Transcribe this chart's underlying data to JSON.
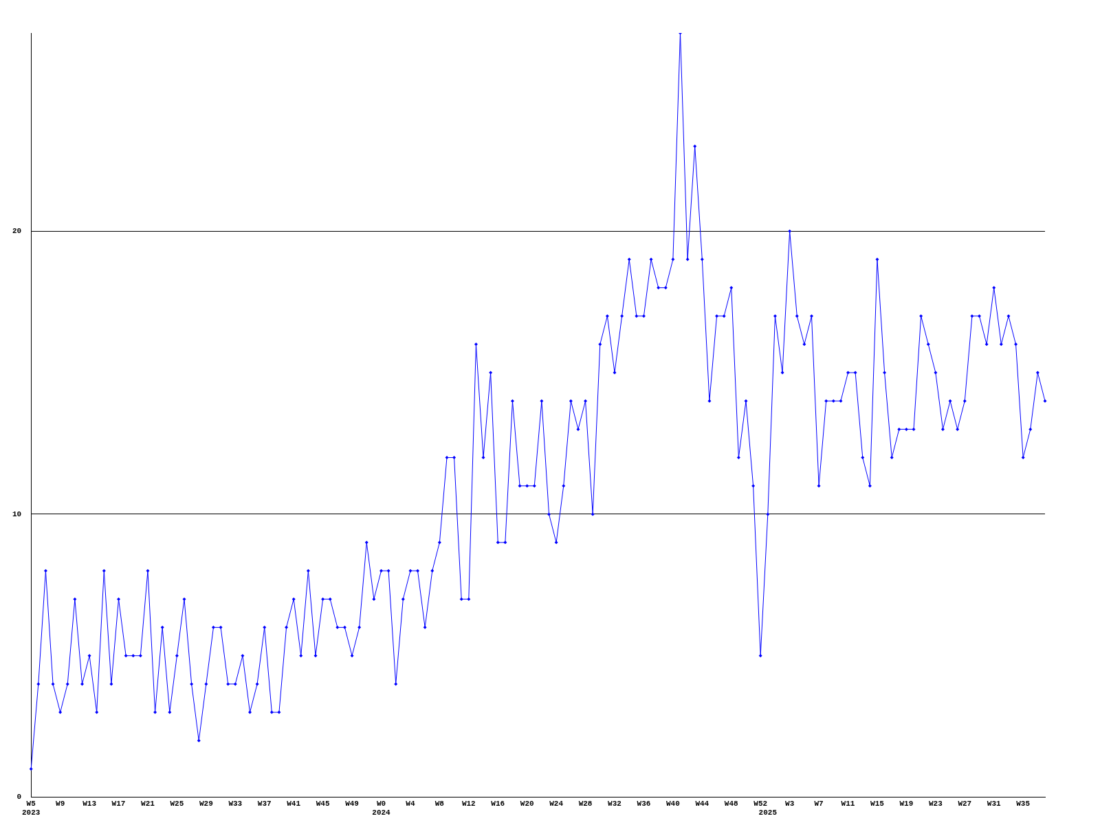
{
  "chart_data": {
    "type": "line",
    "categories": [
      "W5\n2023",
      null,
      null,
      null,
      "W9",
      null,
      null,
      null,
      "W13",
      null,
      null,
      null,
      "W17",
      null,
      null,
      null,
      "W21",
      null,
      null,
      null,
      "W25",
      null,
      null,
      null,
      "W29",
      null,
      null,
      null,
      "W33",
      null,
      null,
      null,
      "W37",
      null,
      null,
      null,
      "W41",
      null,
      null,
      null,
      "W45",
      null,
      null,
      null,
      "W49",
      null,
      null,
      null,
      "W0\n2024",
      null,
      null,
      null,
      "W4",
      null,
      null,
      null,
      "W8",
      null,
      null,
      null,
      "W12",
      null,
      null,
      null,
      "W16",
      null,
      null,
      null,
      "W20",
      null,
      null,
      null,
      "W24",
      null,
      null,
      null,
      "W28",
      null,
      null,
      null,
      "W32",
      null,
      null,
      null,
      "W36",
      null,
      null,
      null,
      "W40",
      null,
      null,
      null,
      "W44",
      null,
      null,
      null,
      "W48",
      null,
      null,
      null,
      "W52",
      "\n2025",
      null,
      null,
      "W3",
      null,
      null,
      null,
      "W7",
      null,
      null,
      null,
      "W11",
      null,
      null,
      null,
      "W15",
      null,
      null,
      null,
      "W19",
      null,
      null,
      null,
      "W23",
      null,
      null,
      null,
      "W27",
      null,
      null,
      null,
      "W31",
      null,
      null,
      null,
      "W35",
      null,
      null,
      null
    ],
    "series": [
      {
        "color": "#0000ff",
        "values": [
          1,
          4,
          8,
          4,
          3,
          4,
          7,
          4,
          5,
          3,
          8,
          4,
          7,
          5,
          5,
          5,
          8,
          3,
          6,
          3,
          5,
          7,
          4,
          2,
          4,
          6,
          6,
          4,
          4,
          5,
          3,
          4,
          6,
          3,
          3,
          6,
          7,
          5,
          8,
          5,
          7,
          7,
          6,
          6,
          5,
          6,
          9,
          7,
          8,
          8,
          4,
          7,
          8,
          8,
          6,
          8,
          9,
          12,
          12,
          7,
          7,
          16,
          12,
          15,
          9,
          9,
          14,
          11,
          11,
          11,
          14,
          10,
          9,
          11,
          14,
          13,
          14,
          10,
          16,
          17,
          15,
          17,
          19,
          17,
          17,
          19,
          18,
          18,
          19,
          27,
          19,
          23,
          19,
          14,
          17,
          17,
          18,
          12,
          14,
          11,
          5,
          10,
          17,
          15,
          20,
          17,
          16,
          17,
          11,
          14,
          14,
          14,
          15,
          15,
          12,
          11,
          19,
          15,
          12,
          13,
          13,
          13,
          17,
          16,
          15,
          13,
          14,
          13,
          14,
          17,
          17,
          16,
          18,
          16,
          17,
          16,
          12,
          13,
          15,
          14
        ]
      }
    ],
    "ylim": [
      0,
      27
    ],
    "yticks": [
      0,
      10,
      20
    ],
    "grid": "y",
    "marker": "diamond",
    "line_style": "solid"
  }
}
